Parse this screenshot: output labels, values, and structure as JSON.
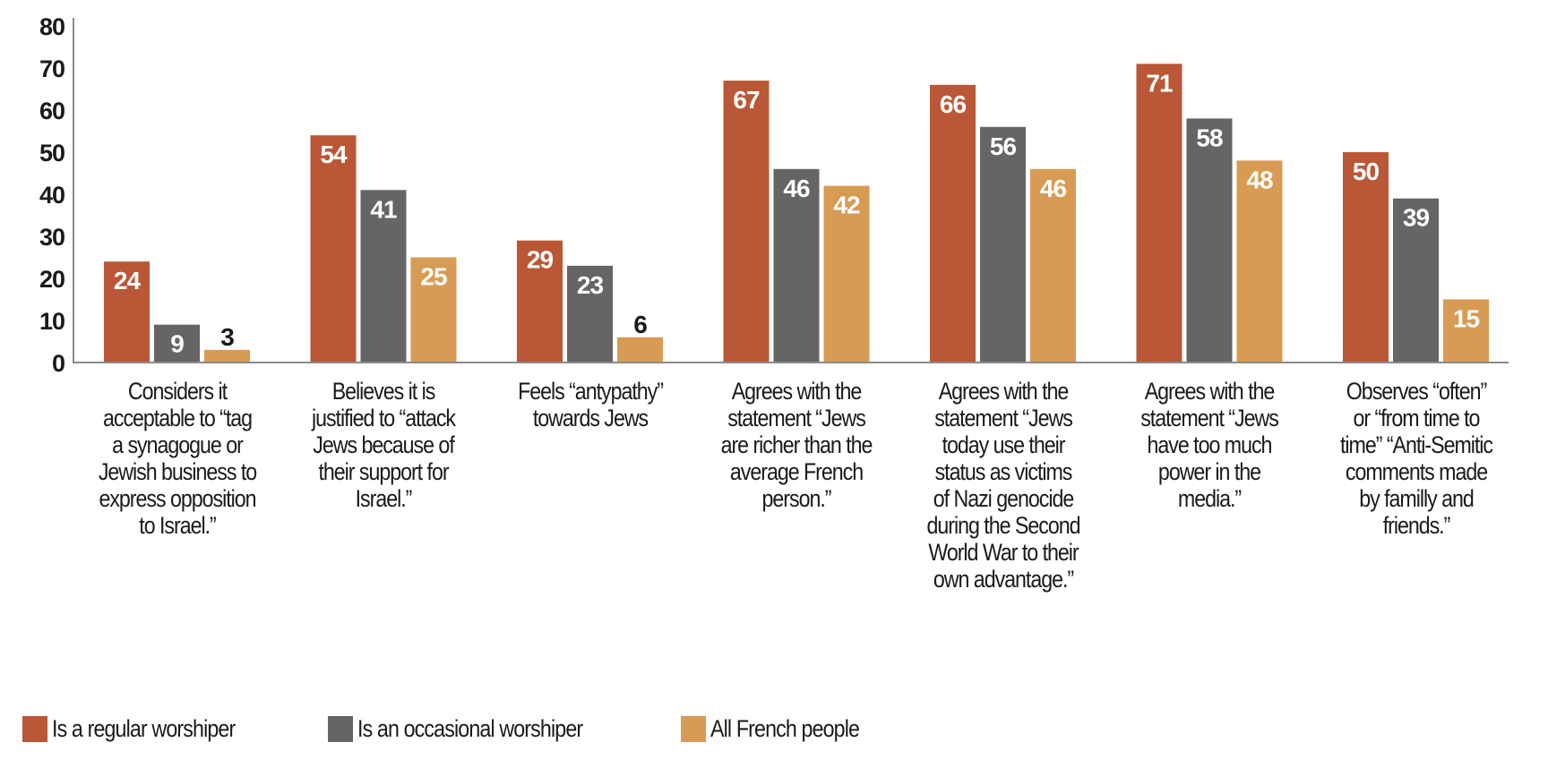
{
  "chart_data": {
    "type": "bar",
    "title": "",
    "xlabel": "",
    "ylabel": "",
    "ylim": [
      0,
      80
    ],
    "yticks": [
      "0",
      "10",
      "20",
      "30",
      "40",
      "50",
      "60",
      "70",
      "80"
    ],
    "grid": false,
    "legend_position": "bottom-left",
    "categories": [
      "Considers it acceptable to “tag a synagogue or Jewish business to express opposition to Israel.”",
      "Believes it is justified to “attack Jews because of their support for Israel.”",
      "Feels “antypathy” towards Jews",
      "Agrees with the statement “Jews are richer than the average French person.”",
      "Agrees with the statement “Jews today use their status as victims of Nazi genocide during the Second World War to their own advantage.”",
      "Agrees with the statement “Jews have too much power in the media.”",
      "Observes “often” or “from time to time” “Anti-Semitic comments made by familly and friends.”"
    ],
    "series": [
      {
        "name": "Is a regular worshiper",
        "color": "#BA5736",
        "values": [
          24,
          54,
          29,
          67,
          66,
          71,
          50
        ]
      },
      {
        "name": "Is an occasional worshiper",
        "color": "#656565",
        "values": [
          9,
          41,
          23,
          46,
          56,
          58,
          39
        ]
      },
      {
        "name": "All French people",
        "color": "#D89B53",
        "values": [
          3,
          25,
          6,
          42,
          46,
          48,
          15
        ]
      }
    ]
  }
}
